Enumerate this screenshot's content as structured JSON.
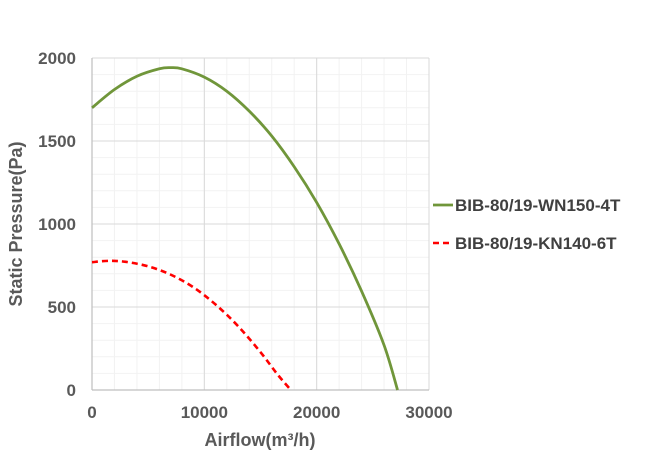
{
  "chart_data": {
    "type": "line",
    "title": "",
    "xlabel": "Airflow(m³/h)",
    "ylabel": "Static Pressure(Pa)",
    "xlim": [
      0,
      30000
    ],
    "ylim": [
      0,
      2000
    ],
    "x_ticks": [
      "0",
      "10000",
      "20000",
      "30000"
    ],
    "y_ticks": [
      "0",
      "500",
      "1000",
      "1500",
      "2000"
    ],
    "grid": true,
    "legend_position": "right",
    "series": [
      {
        "name": "BIB-80/19-WN150-4T",
        "color": "#70963a",
        "style": "solid",
        "x": [
          0,
          2000,
          4000,
          6000,
          7000,
          8000,
          10000,
          12000,
          14000,
          16000,
          18000,
          20000,
          22000,
          24000,
          26000,
          27200
        ],
        "y": [
          1700,
          1810,
          1890,
          1935,
          1942,
          1935,
          1885,
          1800,
          1680,
          1530,
          1345,
          1130,
          880,
          595,
          270,
          0
        ]
      },
      {
        "name": "BIB-80/19-KN140-6T",
        "color": "#ff0000",
        "style": "dashed",
        "x": [
          0,
          1500,
          3000,
          5000,
          7000,
          9000,
          11000,
          13000,
          15000,
          16500,
          17700
        ],
        "y": [
          770,
          778,
          772,
          745,
          695,
          620,
          515,
          385,
          228,
          95,
          0
        ]
      }
    ]
  }
}
